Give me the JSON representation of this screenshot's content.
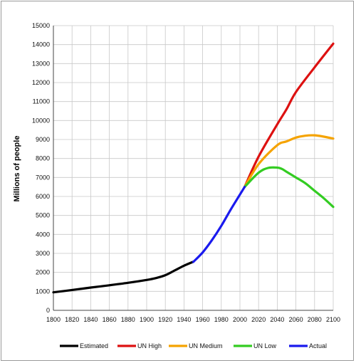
{
  "chart_data": {
    "type": "line",
    "title": "",
    "xlabel": "",
    "ylabel": "Millions of people",
    "xlim": [
      1800,
      2100
    ],
    "ylim": [
      0,
      15000
    ],
    "grid": true,
    "legend_position": "bottom",
    "x_ticks": [
      1800,
      1820,
      1840,
      1860,
      1880,
      1900,
      1920,
      1940,
      1960,
      1980,
      2000,
      2020,
      2040,
      2060,
      2080,
      2100
    ],
    "y_ticks": [
      0,
      1000,
      2000,
      3000,
      4000,
      5000,
      6000,
      7000,
      8000,
      9000,
      10000,
      11000,
      12000,
      13000,
      14000,
      15000
    ],
    "series": [
      {
        "name": "Estimated",
        "color": "#000000",
        "x": [
          1800,
          1820,
          1840,
          1860,
          1880,
          1900,
          1910,
          1920,
          1930,
          1940,
          1950
        ],
        "y": [
          950,
          1070,
          1200,
          1320,
          1450,
          1600,
          1700,
          1850,
          2100,
          2350,
          2560
        ]
      },
      {
        "name": "UN High",
        "color": "#dd1111",
        "x": [
          2005,
          2020,
          2040,
          2050,
          2060,
          2080,
          2100
        ],
        "y": [
          6500,
          8100,
          9800,
          10600,
          11500,
          12800,
          14050
        ]
      },
      {
        "name": "UN Medium",
        "color": "#f5a300",
        "x": [
          2005,
          2020,
          2040,
          2050,
          2060,
          2070,
          2080,
          2090,
          2100
        ],
        "y": [
          6500,
          7700,
          8700,
          8900,
          9100,
          9200,
          9220,
          9150,
          9050
        ]
      },
      {
        "name": "UN Low",
        "color": "#33cc22",
        "x": [
          2005,
          2020,
          2030,
          2040,
          2045,
          2050,
          2060,
          2070,
          2080,
          2090,
          2100
        ],
        "y": [
          6500,
          7250,
          7500,
          7520,
          7450,
          7300,
          7000,
          6700,
          6300,
          5900,
          5450
        ]
      },
      {
        "name": "Actual",
        "color": "#1a1aee",
        "x": [
          1950,
          1960,
          1970,
          1980,
          1990,
          2000,
          2005
        ],
        "y": [
          2550,
          3050,
          3700,
          4450,
          5300,
          6100,
          6500
        ]
      }
    ]
  }
}
